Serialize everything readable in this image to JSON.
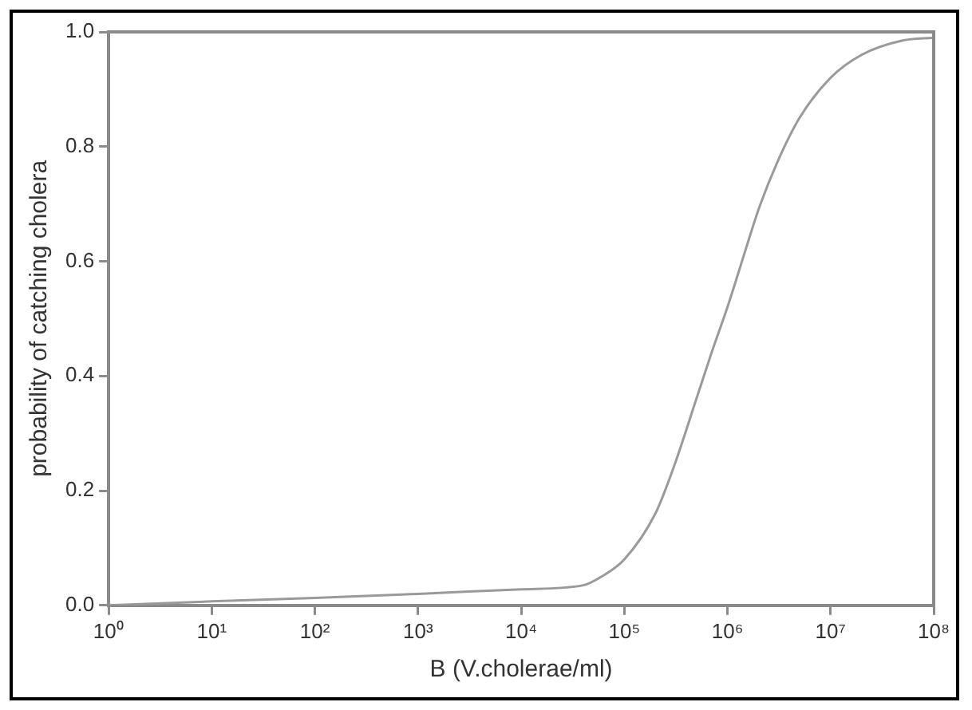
{
  "chart_data": {
    "type": "line",
    "xlabel": "B (V.cholerae/ml)",
    "ylabel": "probability of catching cholera",
    "log": "x",
    "grid": false,
    "legend": false,
    "marker": "none",
    "line_style": "solid",
    "xlim": [
      1,
      100000000
    ],
    "xticks": [
      {
        "value": 1,
        "label": "10⁰"
      },
      {
        "value": 10,
        "label": "10¹"
      },
      {
        "value": 100,
        "label": "10²"
      },
      {
        "value": 1000,
        "label": "10³"
      },
      {
        "value": 10000,
        "label": "10⁴"
      },
      {
        "value": 100000,
        "label": "10⁵"
      },
      {
        "value": 1000000,
        "label": "10⁶"
      },
      {
        "value": 10000000,
        "label": "10⁷"
      },
      {
        "value": 100000000,
        "label": "10⁸"
      }
    ],
    "ylim": [
      0,
      1
    ],
    "yticks": [
      {
        "value": 0,
        "label": "0.0"
      },
      0.2,
      0.4,
      0.6,
      0.8,
      {
        "value": 1,
        "label": "1.0"
      }
    ],
    "series": [
      {
        "color": "#9a9a9a",
        "x": [
          1,
          10,
          100,
          1000,
          10000,
          40000,
          60000,
          100000,
          200000,
          300000,
          500000,
          700000,
          1000000,
          1500000,
          2000000,
          3000000,
          5000000,
          10000000,
          20000000,
          50000000,
          100000000
        ],
        "values": [
          0,
          0.007,
          0.013,
          0.02,
          0.028,
          0.035,
          0.05,
          0.08,
          0.16,
          0.24,
          0.36,
          0.44,
          0.52,
          0.62,
          0.69,
          0.77,
          0.85,
          0.92,
          0.96,
          0.985,
          0.99
        ]
      }
    ]
  }
}
